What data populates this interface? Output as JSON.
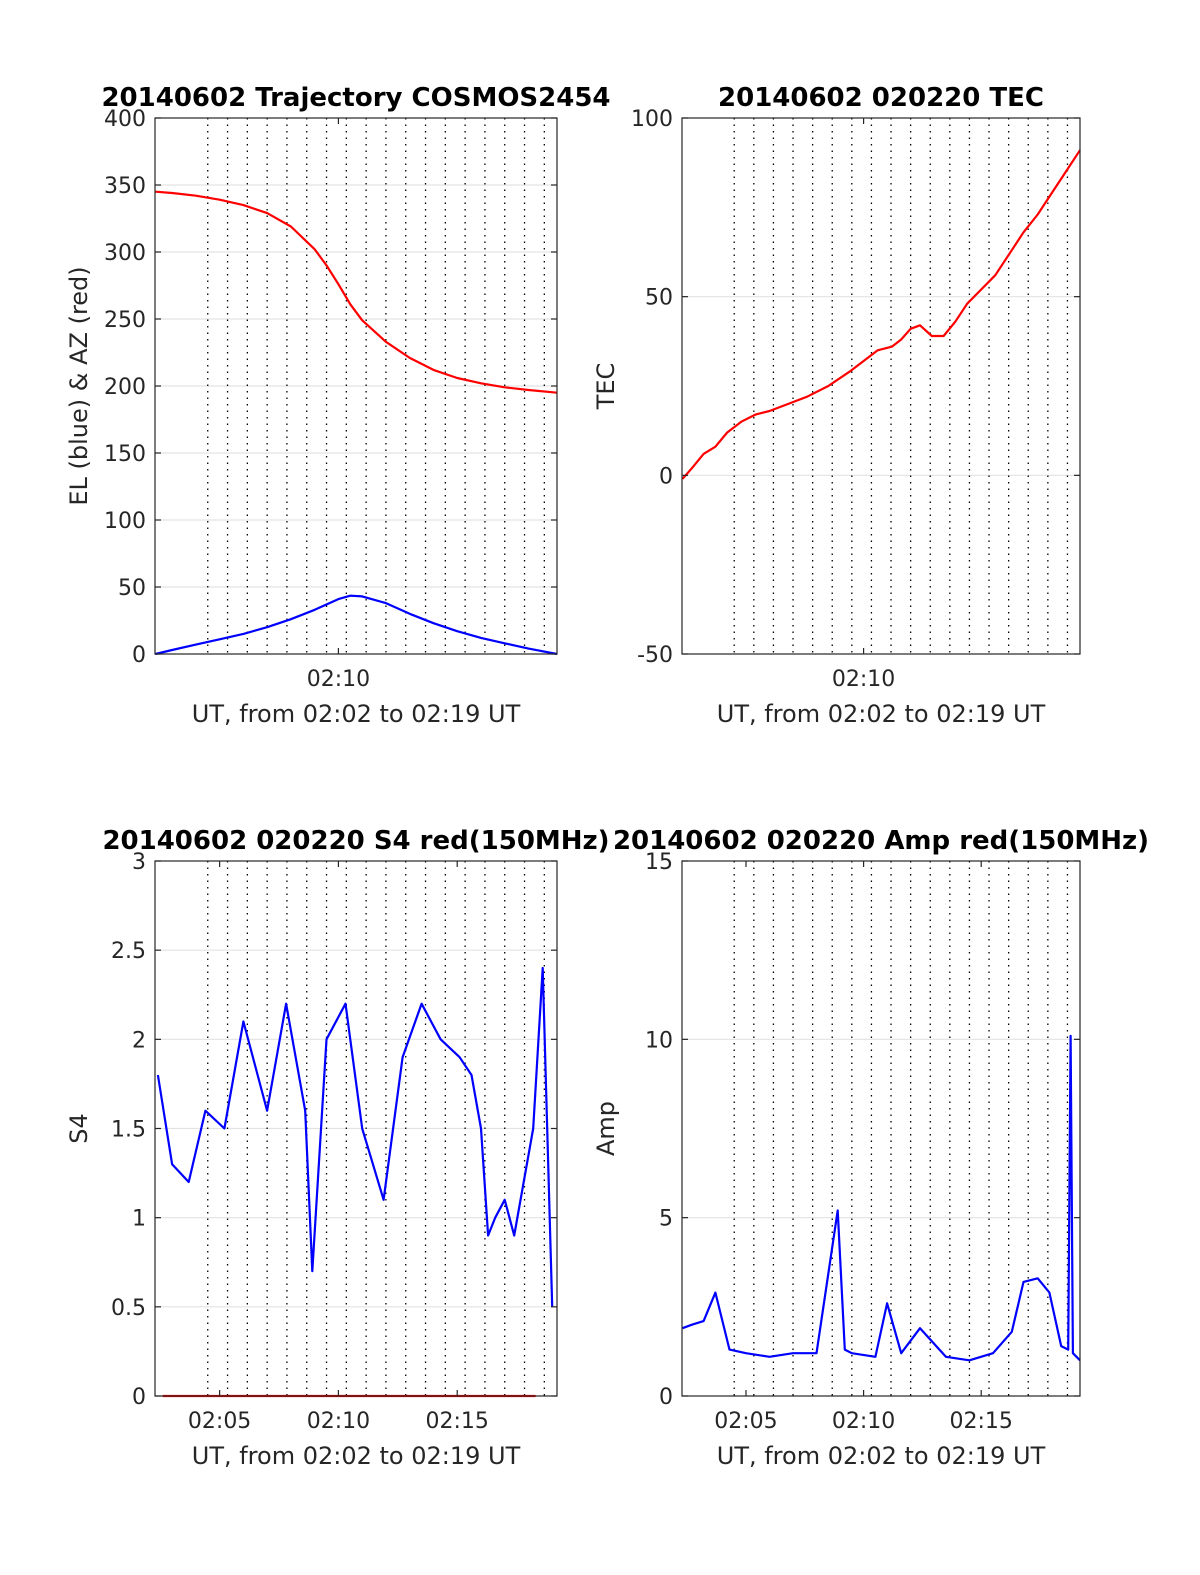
{
  "chart_data": [
    {
      "id": "trajectory",
      "type": "line",
      "title": "20140602 Trajectory COSMOS2454",
      "xlabel": "UT, from 02:02 to 02:19 UT",
      "ylabel": "EL (blue) & AZ (red)",
      "xlim": [
        2.28,
        19.2
      ],
      "ylim": [
        0,
        400
      ],
      "xtick_values": [
        10.0
      ],
      "xtick_labels": [
        "02:10"
      ],
      "yticks": [
        0,
        50,
        100,
        150,
        200,
        250,
        300,
        350,
        400
      ],
      "grid": "dotted vertical lines every 0.83 min, horizontal lines at y ticks",
      "series": [
        {
          "color": "#ff0000",
          "x": [
            2.3,
            3,
            4,
            5,
            6,
            7,
            8,
            9,
            9.5,
            10,
            10.5,
            11,
            12,
            13,
            14,
            15,
            16,
            17,
            18,
            19.2
          ],
          "values": [
            345,
            344,
            342,
            339,
            335,
            329,
            319,
            302,
            290,
            276,
            261,
            249,
            233,
            221,
            212,
            206,
            202,
            199,
            197,
            195
          ]
        },
        {
          "color": "#0000ff",
          "x": [
            2.3,
            3,
            4,
            5,
            6,
            7,
            8,
            9,
            10,
            10.5,
            11,
            12,
            13,
            14,
            15,
            16,
            17,
            18,
            19.2
          ],
          "values": [
            0,
            3,
            7,
            11,
            15,
            20,
            26,
            33,
            41,
            43.5,
            43,
            38,
            30,
            23,
            17,
            12,
            8,
            4,
            0
          ]
        }
      ]
    },
    {
      "id": "tec",
      "type": "line",
      "title": "20140602 020220 TEC",
      "xlabel": "UT, from 02:02 to 02:19 UT",
      "ylabel": "TEC",
      "xlim": [
        2.28,
        19.2
      ],
      "ylim": [
        -50,
        100
      ],
      "xtick_values": [
        10.0
      ],
      "xtick_labels": [
        "02:10"
      ],
      "yticks": [
        -50,
        0,
        50,
        100
      ],
      "series": [
        {
          "color": "#ff0000",
          "x": [
            2.3,
            2.7,
            3.2,
            3.7,
            4.2,
            4.8,
            5.4,
            6.0,
            6.8,
            7.6,
            8.5,
            9.4,
            10.0,
            10.6,
            11.2,
            11.6,
            12.0,
            12.4,
            12.9,
            13.4,
            13.9,
            14.4,
            15.0,
            15.6,
            16.2,
            16.8,
            17.4,
            18.0,
            18.6,
            19.2
          ],
          "values": [
            -1,
            2,
            6,
            8,
            12,
            15,
            17,
            18,
            20,
            22,
            25,
            29,
            32,
            35,
            36,
            38,
            41,
            42,
            39,
            39,
            43,
            48,
            52,
            56,
            62,
            68,
            73,
            79,
            85,
            91
          ]
        }
      ]
    },
    {
      "id": "s4",
      "type": "line",
      "title": "20140602 020220 S4 red(150MHz)",
      "xlabel": "UT, from 02:02 to 02:19 UT",
      "ylabel": "S4",
      "xlim": [
        2.28,
        19.2
      ],
      "ylim": [
        0,
        3
      ],
      "xtick_values": [
        5.0,
        10.0,
        15.0
      ],
      "xtick_labels": [
        "02:05",
        "02:10",
        "02:15"
      ],
      "yticks": [
        0,
        0.5,
        1,
        1.5,
        2,
        2.5,
        3
      ],
      "ytick_labels": [
        "0",
        "0.5",
        "1",
        "1.5",
        "2",
        "2.5",
        "3"
      ],
      "series": [
        {
          "color": "#ff0000",
          "x": [
            2.6,
            3.0,
            3.6,
            4.3,
            5.3,
            7.4,
            8.6,
            9.5,
            10.6,
            11.4,
            11.9,
            12.3,
            13.0,
            14.2,
            14.7,
            15.5,
            15.9,
            16.2,
            16.5,
            17.0,
            17.3,
            17.7,
            18.3
          ],
          "values": [
            0,
            0,
            0,
            0,
            0,
            0,
            0,
            0,
            0,
            0,
            0,
            0,
            0,
            0,
            0,
            0,
            0,
            0,
            0,
            0,
            0,
            0,
            0
          ]
        },
        {
          "color": "#0000ff",
          "x": [
            2.4,
            3.0,
            3.7,
            4.4,
            5.2,
            6.0,
            7.0,
            7.8,
            8.6,
            8.9,
            9.5,
            10.3,
            11.0,
            11.9,
            12.7,
            13.5,
            14.3,
            15.1,
            15.6,
            16.0,
            16.3,
            16.6,
            17.0,
            17.4,
            17.8,
            18.2,
            18.6,
            19.0
          ],
          "values": [
            1.8,
            1.3,
            1.2,
            1.6,
            1.5,
            2.1,
            1.6,
            2.2,
            1.6,
            0.7,
            2.0,
            2.2,
            1.5,
            1.1,
            1.9,
            2.2,
            2.0,
            1.9,
            1.8,
            1.5,
            0.9,
            1.0,
            1.1,
            0.9,
            1.2,
            1.5,
            2.4,
            0.5
          ]
        }
      ]
    },
    {
      "id": "amp",
      "type": "line",
      "title": "20140602 020220 Amp red(150MHz)",
      "xlabel": "UT, from 02:02 to 02:19 UT",
      "ylabel": "Amp",
      "xlim": [
        2.28,
        19.2
      ],
      "ylim": [
        0,
        15
      ],
      "xtick_values": [
        5.0,
        10.0,
        15.0
      ],
      "xtick_labels": [
        "02:05",
        "02:10",
        "02:15"
      ],
      "yticks": [
        0,
        5,
        10,
        15
      ],
      "series": [
        {
          "color": "#0000ff",
          "x": [
            2.3,
            2.7,
            3.2,
            3.7,
            4.3,
            5.0,
            6.0,
            7.0,
            8.0,
            8.9,
            9.2,
            9.5,
            10.5,
            11.0,
            11.6,
            12.4,
            13.5,
            14.5,
            15.5,
            16.3,
            16.8,
            17.4,
            17.9,
            18.4,
            18.7,
            18.8,
            18.9,
            19.2
          ],
          "values": [
            1.9,
            2.0,
            2.1,
            2.9,
            1.3,
            1.2,
            1.1,
            1.2,
            1.2,
            5.2,
            1.3,
            1.2,
            1.1,
            2.6,
            1.2,
            1.9,
            1.1,
            1.0,
            1.2,
            1.8,
            3.2,
            3.3,
            2.9,
            1.4,
            1.3,
            10.1,
            1.2,
            1.0
          ]
        }
      ]
    }
  ]
}
